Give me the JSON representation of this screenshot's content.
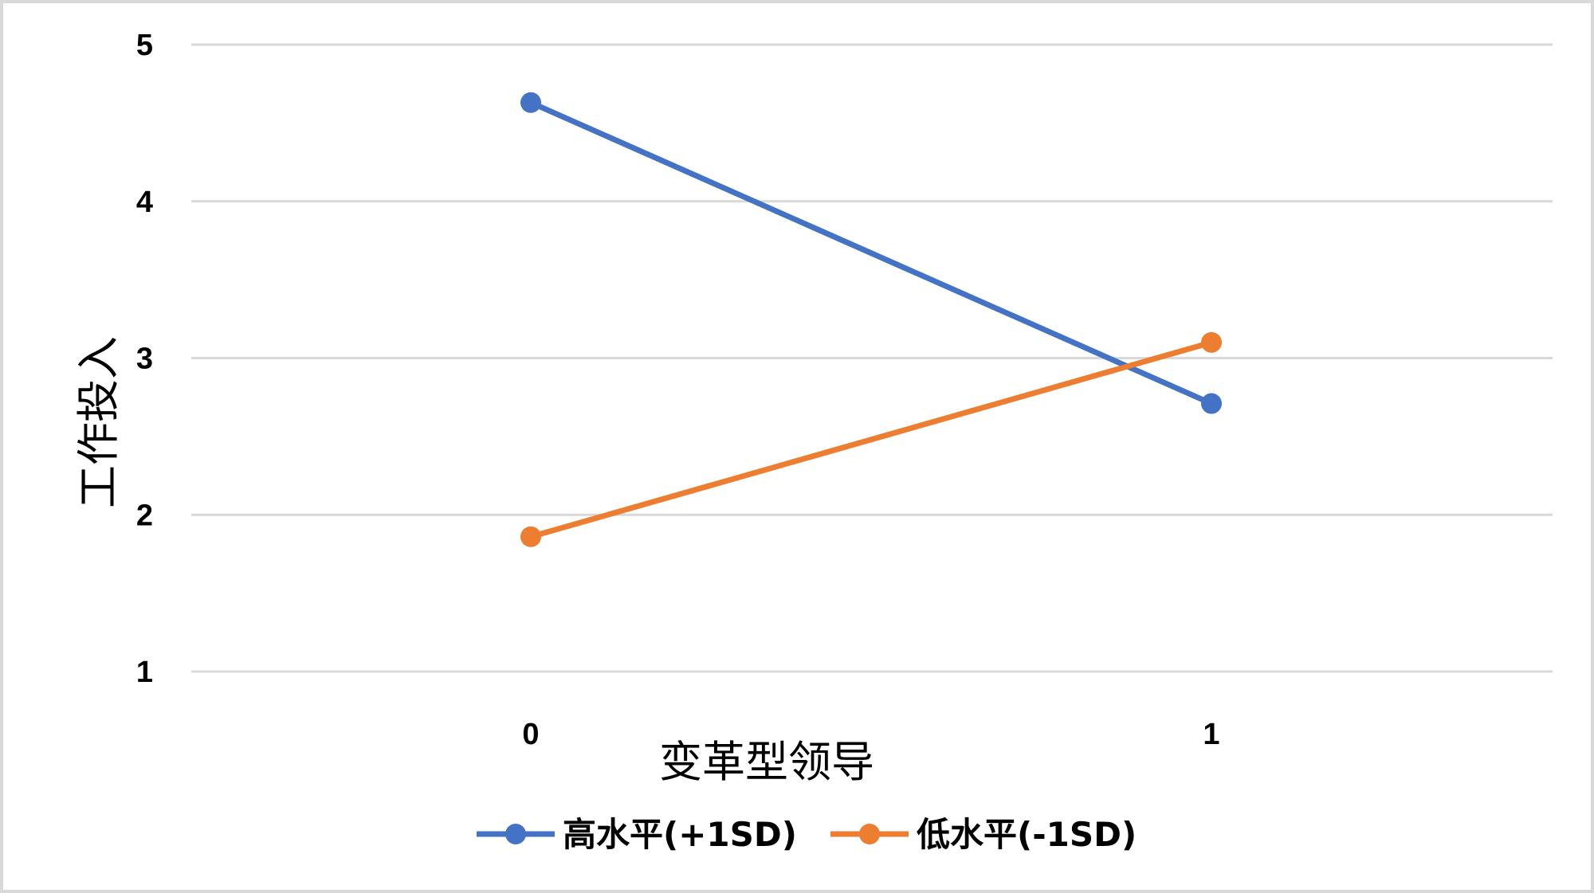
{
  "chart_data": {
    "type": "line",
    "title": "",
    "xlabel": "变革型领导",
    "ylabel": "工作投入",
    "categories": [
      "0",
      "1"
    ],
    "y_ticks": [
      "1",
      "2",
      "3",
      "4",
      "5"
    ],
    "ylim": [
      1,
      5
    ],
    "grid": "horizontal",
    "legend_position": "bottom",
    "series": [
      {
        "name": "高水平(+1SD)",
        "color": "#4472C4",
        "values": [
          4.63,
          2.71
        ]
      },
      {
        "name": "低水平(-1SD)",
        "color": "#ED7D31",
        "values": [
          1.86,
          3.1
        ]
      }
    ]
  }
}
